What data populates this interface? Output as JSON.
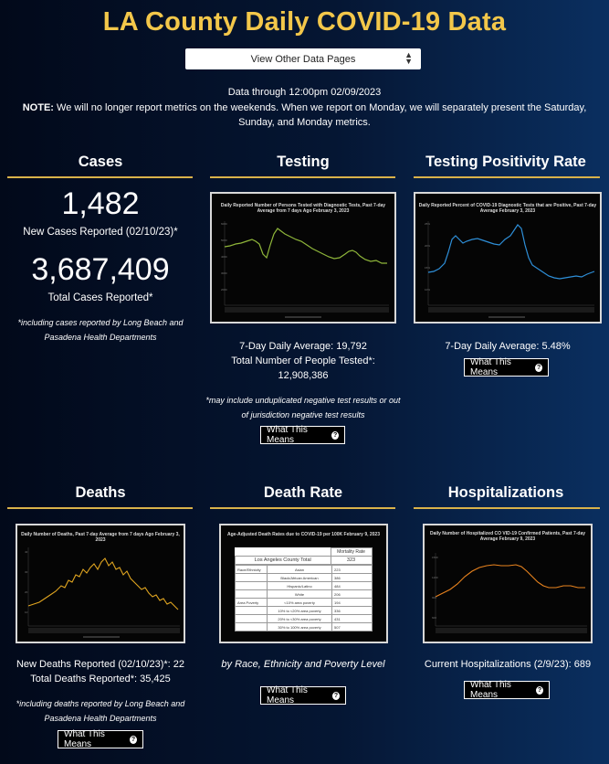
{
  "page": {
    "title": "LA County Daily COVID-19 Data",
    "select_label": "View Other Data Pages",
    "data_through": "Data through 12:00pm 02/09/2023",
    "note_label": "NOTE:",
    "note_text": "We will no longer report metrics on the weekends. When we report on Monday, we will separately present the Saturday, Sunday, and Monday metrics."
  },
  "cases": {
    "title": "Cases",
    "new_value": "1,482",
    "new_label": "New Cases Reported (02/10/23)*",
    "total_value": "3,687,409",
    "total_label": "Total Cases Reported*",
    "footnote": "*including cases reported by Long Beach and Pasadena Health Departments"
  },
  "testing": {
    "title": "Testing",
    "chart_title": "Daily Reported Number of Persons Tested with Diagnostic Tests, Past 7-day Average from 7 days Ago February 3, 2023",
    "avg_text": "7-Day Daily Average: 19,792",
    "total_label": "Total Number of People Tested*:",
    "total_value": "12,908,386",
    "footnote": "*may include unduplicated negative test results or out of jurisdiction negative test results",
    "button": "What This Means"
  },
  "positivity": {
    "title": "Testing Positivity Rate",
    "chart_title": "Daily Reported Percent of COVID-19 Diagnostic Tests that are Positive, Past 7-day Average February 3, 2023",
    "avg_text": "7-Day Daily Average: 5.48%",
    "button": "What This Means"
  },
  "deaths": {
    "title": "Deaths",
    "chart_title": "Daily Number of Deaths, Past 7-day Average from 7 days Ago February 3, 2023",
    "new_text": "New Deaths Reported (02/10/23)*: 22",
    "total_text": "Total Deaths Reported*: 35,425",
    "footnote": "*including deaths reported by Long Beach and Pasadena Health Departments",
    "button": "What This Means"
  },
  "death_rate": {
    "title": "Death Rate",
    "chart_title": "Age-Adjusted Death Rates due to COVID-19 per 100K February 9, 2023",
    "col_header": "Mortality Rate",
    "county_label": "Los Angeles County Total",
    "county_value": "323",
    "group_race": "Race/Ethnicity",
    "group_poverty": "Area Poverty",
    "rows": [
      {
        "label": "Asian",
        "value": "223"
      },
      {
        "label": "Black/African American",
        "value": "386"
      },
      {
        "label": "Hispanic/Latino",
        "value": "484"
      },
      {
        "label": "White",
        "value": "206"
      },
      {
        "label": "<10% area poverty",
        "value": "194"
      },
      {
        "label": "10% to <20% area poverty",
        "value": "336"
      },
      {
        "label": "20% to <30% area poverty",
        "value": "431"
      },
      {
        "label": "30% to 100% area poverty",
        "value": "507"
      }
    ],
    "caption": "by Race, Ethnicity and Poverty Level",
    "button": "What This Means"
  },
  "hospitalizations": {
    "title": "Hospitalizations",
    "chart_title": "Daily Number of Hospitalized CO VID-19 Confirmed Patients, Past 7-day Average February 9, 2023",
    "current_text": "Current Hospitalizations (2/9/23): 689",
    "button": "What This Means"
  },
  "colors": {
    "accent": "#f3c74a",
    "rule": "#d9b24a",
    "testing_line": "#8fb63a",
    "positivity_line": "#2e8fd8",
    "deaths_line": "#e0a520",
    "hosp_line": "#e8831e"
  },
  "icons": {
    "select_chevron": "up-down-chevron-icon",
    "help": "question-circle-icon"
  }
}
